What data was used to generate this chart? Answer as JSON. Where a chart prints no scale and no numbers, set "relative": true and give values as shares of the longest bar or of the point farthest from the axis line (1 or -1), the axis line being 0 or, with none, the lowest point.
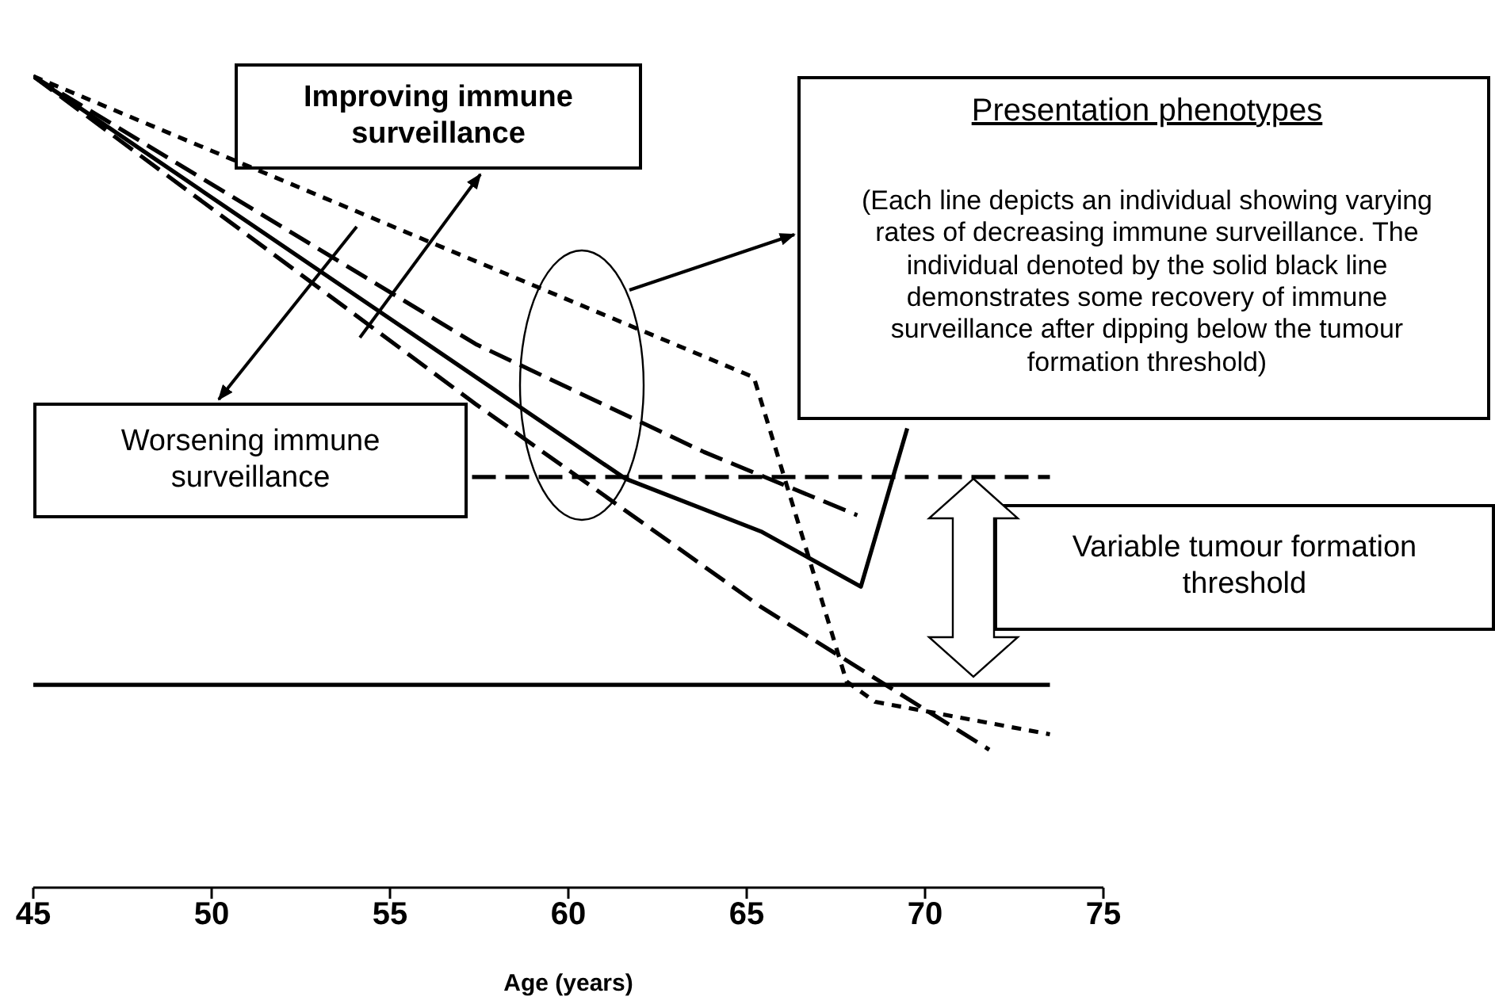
{
  "chart_data": {
    "type": "line",
    "relative": true,
    "xlabel": "Age (years)",
    "xlim": [
      45,
      75
    ],
    "xticks": [
      45,
      50,
      55,
      60,
      65,
      70,
      75
    ],
    "marker": "none",
    "annotations": [
      "Improving immune surveillance",
      "Worsening immune surveillance",
      "Presentation phenotypes",
      "(Each line depicts an individual showing varying rates of decreasing immune surveillance. The individual denoted by the solid black line demonstrates some recovery of immune surveillance after dipping below the tumour formation threshold)",
      "Variable tumour formation threshold"
    ],
    "series": [
      {
        "color": "#000000",
        "line_style": "dotted",
        "x": [
          45,
          60.4,
          65.2,
          67.8,
          68.6,
          73.5
        ],
        "values": [
          1,
          0.717,
          0.629,
          0.254,
          0.229,
          0.189
        ]
      },
      {
        "color": "#000000",
        "line_style": "solid",
        "x": [
          45,
          61.6,
          65.4,
          68.2,
          69.5
        ],
        "values": [
          1,
          0.504,
          0.439,
          0.371,
          0.566
        ]
      },
      {
        "color": "#000000",
        "line_style": "dashed",
        "x": [
          45,
          57.4,
          65.4,
          71.8
        ],
        "values": [
          1,
          0.596,
          0.346,
          0.17
        ]
      },
      {
        "color": "#000000",
        "line_style": "dashed",
        "x": [
          45,
          57.4,
          63.8,
          68.1
        ],
        "values": [
          1,
          0.67,
          0.537,
          0.459
        ]
      },
      {
        "color": "#000000",
        "line_style": "dashed",
        "x": [
          57.3,
          73.5
        ],
        "values": [
          0.506,
          0.506
        ]
      },
      {
        "color": "#000000",
        "line_style": "solid",
        "x": [
          45,
          73.5
        ],
        "values": [
          0.25,
          0.25
        ]
      }
    ]
  }
}
